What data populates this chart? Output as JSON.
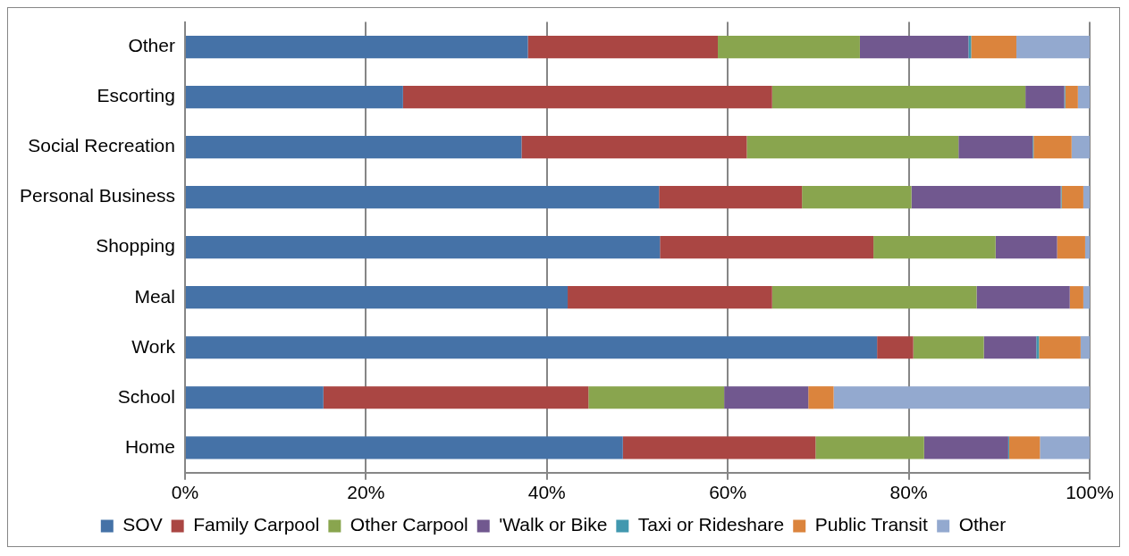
{
  "chart_data": {
    "type": "bar",
    "orientation": "horizontal",
    "stacked": true,
    "categories": [
      "Other",
      "Escorting",
      "Social Recreation",
      "Personal Business",
      "Shopping",
      "Meal",
      "Work",
      "School",
      "Home"
    ],
    "series": [
      {
        "name": "SOV",
        "color": "#4572a7",
        "values": [
          37.9,
          24.1,
          37.2,
          52.4,
          52.5,
          42.3,
          76.5,
          15.3,
          48.4
        ]
      },
      {
        "name": "Family Carpool",
        "color": "#aa4643",
        "values": [
          21.0,
          40.8,
          24.9,
          15.8,
          23.6,
          22.6,
          4.0,
          29.3,
          21.3
        ]
      },
      {
        "name": "Other Carpool",
        "color": "#89a54e",
        "values": [
          15.7,
          28.0,
          23.4,
          12.1,
          13.5,
          22.6,
          7.8,
          15.0,
          12.0
        ]
      },
      {
        "name": "'Walk or Bike",
        "color": "#71588f",
        "values": [
          12.0,
          4.3,
          8.2,
          16.5,
          6.8,
          10.3,
          5.8,
          9.3,
          9.3
        ]
      },
      {
        "name": "Taxi or Rideshare",
        "color": "#4198af",
        "values": [
          0.3,
          0.1,
          0.1,
          0.1,
          0,
          0,
          0.3,
          0,
          0.1
        ]
      },
      {
        "name": "Public Transit",
        "color": "#db843d",
        "values": [
          5.0,
          1.4,
          4.2,
          2.4,
          3.1,
          1.5,
          4.6,
          2.8,
          3.4
        ]
      },
      {
        "name": "Other",
        "color": "#93a9cf",
        "values": [
          8.1,
          1.3,
          2.0,
          0.7,
          0.5,
          0.7,
          1.0,
          28.3,
          5.5
        ]
      }
    ],
    "xlim": [
      0,
      100
    ],
    "xticks": [
      {
        "value": 0,
        "label": "0%"
      },
      {
        "value": 20,
        "label": "20%"
      },
      {
        "value": 40,
        "label": "40%"
      },
      {
        "value": 60,
        "label": "60%"
      },
      {
        "value": 80,
        "label": "80%"
      },
      {
        "value": 100,
        "label": "100%"
      }
    ],
    "grid": "x",
    "legend": "bottom"
  }
}
